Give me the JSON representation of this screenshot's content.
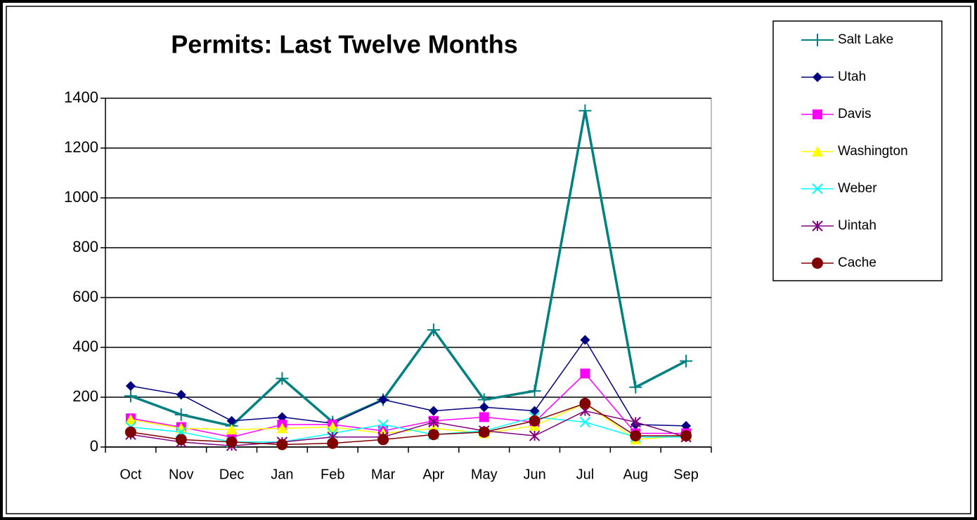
{
  "chart_data": {
    "type": "line",
    "title": "Permits: Last Twelve Months",
    "categories": [
      "Oct",
      "Nov",
      "Dec",
      "Jan",
      "Feb",
      "Mar",
      "Apr",
      "May",
      "Jun",
      "Jul",
      "Aug",
      "Sep"
    ],
    "series": [
      {
        "name": "Salt Lake",
        "color": "#008080",
        "marker": "plus",
        "values": [
          205,
          130,
          85,
          275,
          100,
          190,
          470,
          190,
          225,
          1350,
          240,
          345
        ]
      },
      {
        "name": "Utah",
        "color": "#000080",
        "marker": "diamond",
        "values": [
          245,
          210,
          105,
          120,
          95,
          190,
          145,
          160,
          145,
          430,
          90,
          85
        ]
      },
      {
        "name": "Davis",
        "color": "#ff00ff",
        "marker": "square",
        "values": [
          115,
          80,
          40,
          90,
          90,
          65,
          105,
          120,
          100,
          295,
          55,
          55
        ]
      },
      {
        "name": "Washington",
        "color": "#ffff00",
        "marker": "triangle",
        "values": [
          110,
          75,
          70,
          75,
          80,
          55,
          75,
          55,
          85,
          175,
          30,
          45
        ]
      },
      {
        "name": "Weber",
        "color": "#00ffff",
        "marker": "x",
        "values": [
          80,
          60,
          20,
          20,
          55,
          90,
          50,
          65,
          120,
          100,
          40,
          40
        ]
      },
      {
        "name": "Uintah",
        "color": "#800080",
        "marker": "star",
        "values": [
          50,
          20,
          5,
          20,
          40,
          40,
          100,
          65,
          45,
          145,
          100,
          40
        ]
      },
      {
        "name": "Cache",
        "color": "#800000",
        "marker": "circle",
        "values": [
          60,
          30,
          20,
          10,
          15,
          30,
          50,
          60,
          105,
          175,
          45,
          45
        ]
      }
    ],
    "ylim": [
      0,
      1400
    ],
    "yticks": [
      0,
      200,
      400,
      600,
      800,
      1000,
      1200,
      1400
    ],
    "grid": true,
    "legend": "right"
  }
}
